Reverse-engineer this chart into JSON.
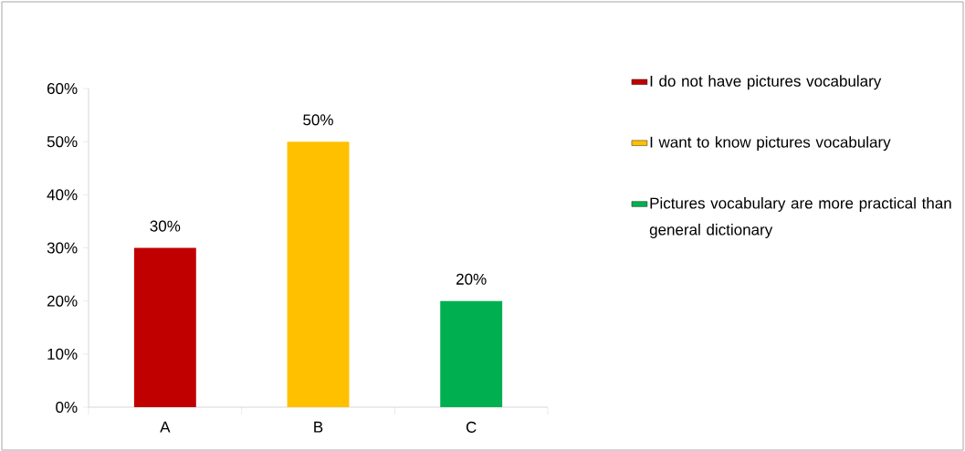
{
  "chart_data": {
    "type": "bar",
    "categories": [
      "A",
      "B",
      "C"
    ],
    "series": [
      {
        "name": "I do not have pictures vocabulary",
        "color": "#c00000",
        "values": [
          30,
          null,
          null
        ],
        "value_labels": [
          "30%",
          null,
          null
        ]
      },
      {
        "name": "I want to know pictures vocabulary",
        "color": "#ffc000",
        "values": [
          null,
          50,
          null
        ],
        "value_labels": [
          null,
          "50%",
          null
        ]
      },
      {
        "name": "Pictures vocabulary are more practical than general dictionary",
        "color": "#00b050",
        "values": [
          null,
          null,
          20
        ],
        "value_labels": [
          null,
          null,
          "20%"
        ]
      }
    ],
    "ylim": [
      0,
      60
    ],
    "yticks": [
      {
        "value": 0,
        "label": "0%"
      },
      {
        "value": 10,
        "label": "10%"
      },
      {
        "value": 20,
        "label": "20%"
      },
      {
        "value": 30,
        "label": "30%"
      },
      {
        "value": 40,
        "label": "40%"
      },
      {
        "value": 50,
        "label": "50%"
      },
      {
        "value": 60,
        "label": "60%"
      }
    ],
    "grid": false,
    "legend": "right"
  }
}
